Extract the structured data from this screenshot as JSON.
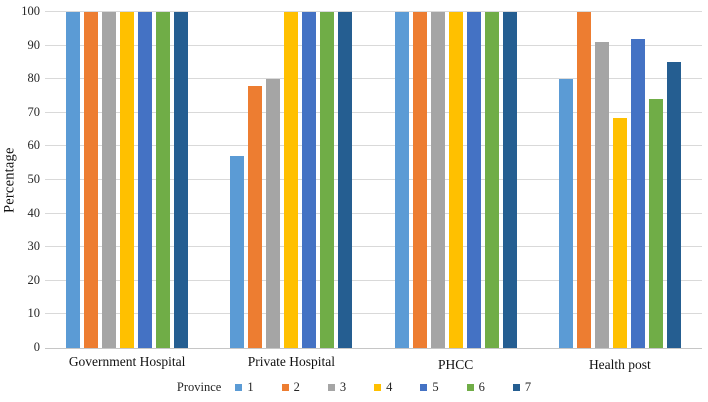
{
  "chart_data": {
    "type": "bar",
    "title": "",
    "categories": [
      "Government Hospital",
      "Private Hospital",
      "PHCC",
      "Health post"
    ],
    "series": [
      {
        "name": "1",
        "color": "#5B9BD5",
        "values": [
          100,
          57,
          100,
          80
        ]
      },
      {
        "name": "2",
        "color": "#ED7D31",
        "values": [
          100,
          78,
          100,
          100
        ]
      },
      {
        "name": "3",
        "color": "#A5A5A5",
        "values": [
          100,
          80,
          100,
          91
        ]
      },
      {
        "name": "4",
        "color": "#FFC000",
        "values": [
          100,
          100,
          100,
          68.5
        ]
      },
      {
        "name": "5",
        "color": "#4472C4",
        "values": [
          100,
          100,
          100,
          92
        ]
      },
      {
        "name": "6",
        "color": "#70AD47",
        "values": [
          100,
          100,
          100,
          74
        ]
      },
      {
        "name": "7",
        "color": "#255E91",
        "values": [
          100,
          100,
          100,
          85
        ]
      }
    ],
    "xlabel": "",
    "ylabel": "Percentage",
    "ylim": [
      0,
      100
    ],
    "yticks": [
      0,
      10,
      20,
      30,
      40,
      50,
      60,
      70,
      80,
      90,
      100
    ],
    "grid": true,
    "gridline_color": "#D9D9D9",
    "legend_title": "Province",
    "legend_position": "bottom"
  }
}
